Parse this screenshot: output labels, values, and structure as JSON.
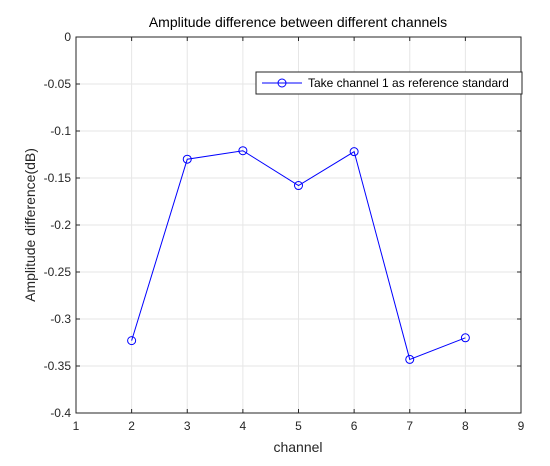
{
  "chart_data": {
    "type": "line",
    "title": "Amplitude difference between different channels",
    "xlabel": "channel",
    "ylabel": "Amplitude difference(dB)",
    "xlim": [
      1,
      9
    ],
    "ylim": [
      -0.4,
      0
    ],
    "xticks": [
      1,
      2,
      3,
      4,
      5,
      6,
      7,
      8,
      9
    ],
    "yticks": [
      0,
      -0.05,
      -0.1,
      -0.15,
      -0.2,
      -0.25,
      -0.3,
      -0.35,
      -0.4
    ],
    "ytick_labels": [
      "0",
      "-0.05",
      "-0.1",
      "-0.15",
      "-0.2",
      "-0.25",
      "-0.3",
      "-0.35",
      "-0.4"
    ],
    "grid": true,
    "legend_position": "top-right",
    "series": [
      {
        "name": "Take channel 1 as reference standard",
        "color": "#0000ff",
        "marker": "circle",
        "x": [
          2,
          3,
          4,
          5,
          6,
          7,
          8
        ],
        "y": [
          -0.323,
          -0.13,
          -0.121,
          -0.158,
          -0.122,
          -0.343,
          -0.32
        ]
      }
    ]
  }
}
